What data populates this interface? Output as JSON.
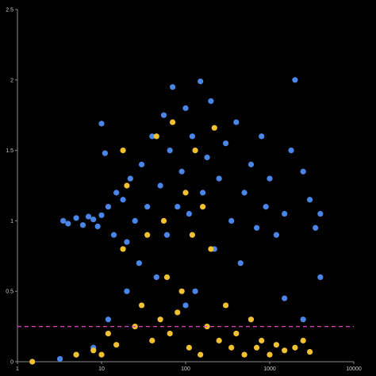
{
  "chart_data": {
    "type": "scatter",
    "title": "",
    "xlabel": "",
    "ylabel": "",
    "x_scale": "log",
    "xlim": [
      1,
      10000
    ],
    "ylim": [
      0,
      2.5
    ],
    "x_ticks": [
      {
        "value": 1,
        "label": "1"
      },
      {
        "value": 10,
        "label": "10"
      },
      {
        "value": 100,
        "label": "100"
      },
      {
        "value": 1000,
        "label": "1000"
      },
      {
        "value": 10000,
        "label": "10000"
      }
    ],
    "y_ticks": [
      {
        "value": 0,
        "label": "0"
      },
      {
        "value": 0.5,
        "label": "0.5"
      },
      {
        "value": 1,
        "label": "1"
      },
      {
        "value": 1.5,
        "label": "1.5"
      },
      {
        "value": 2,
        "label": "2"
      },
      {
        "value": 2.5,
        "label": "2.5"
      }
    ],
    "grid": false,
    "legend": "none",
    "background_color": "#000000",
    "axis_color": "#8a8a8a",
    "reference_line": {
      "y": 0.25,
      "color": "#e040c8",
      "style": "dashed"
    },
    "series": [
      {
        "color": "#4a86e8",
        "points": [
          [
            3.5,
            1.0
          ],
          [
            4,
            0.98
          ],
          [
            5,
            1.02
          ],
          [
            6,
            0.97
          ],
          [
            7,
            1.03
          ],
          [
            8,
            1.01
          ],
          [
            9,
            0.96
          ],
          [
            10,
            1.04
          ],
          [
            10,
            1.69
          ],
          [
            11,
            1.48
          ],
          [
            12,
            1.1
          ],
          [
            14,
            0.9
          ],
          [
            15,
            1.2
          ],
          [
            18,
            1.15
          ],
          [
            20,
            0.85
          ],
          [
            22,
            1.3
          ],
          [
            25,
            1.0
          ],
          [
            28,
            0.7
          ],
          [
            30,
            1.4
          ],
          [
            35,
            1.1
          ],
          [
            40,
            1.6
          ],
          [
            45,
            0.6
          ],
          [
            50,
            1.25
          ],
          [
            55,
            1.75
          ],
          [
            60,
            0.9
          ],
          [
            65,
            1.5
          ],
          [
            70,
            1.95
          ],
          [
            80,
            1.1
          ],
          [
            90,
            1.35
          ],
          [
            100,
            1.8
          ],
          [
            100,
            0.4
          ],
          [
            110,
            1.05
          ],
          [
            120,
            1.6
          ],
          [
            130,
            0.5
          ],
          [
            150,
            1.99
          ],
          [
            160,
            1.2
          ],
          [
            180,
            1.45
          ],
          [
            200,
            1.85
          ],
          [
            220,
            0.8
          ],
          [
            250,
            1.3
          ],
          [
            300,
            1.55
          ],
          [
            350,
            1.0
          ],
          [
            400,
            1.7
          ],
          [
            450,
            0.7
          ],
          [
            500,
            1.2
          ],
          [
            600,
            1.4
          ],
          [
            700,
            0.95
          ],
          [
            800,
            1.6
          ],
          [
            900,
            1.1
          ],
          [
            1000,
            1.3
          ],
          [
            1200,
            0.9
          ],
          [
            1500,
            1.05
          ],
          [
            1800,
            1.5
          ],
          [
            2000,
            2.0
          ],
          [
            2500,
            1.35
          ],
          [
            3000,
            1.15
          ],
          [
            3500,
            0.95
          ],
          [
            4000,
            1.05
          ],
          [
            4000,
            0.6
          ],
          [
            2500,
            0.3
          ],
          [
            1500,
            0.45
          ],
          [
            5,
            0.05
          ],
          [
            8,
            0.1
          ],
          [
            3.2,
            0.02
          ],
          [
            12,
            0.3
          ],
          [
            20,
            0.5
          ]
        ]
      },
      {
        "color": "#f2c132",
        "points": [
          [
            1.5,
            0.0
          ],
          [
            5,
            0.05
          ],
          [
            8,
            0.08
          ],
          [
            10,
            0.05
          ],
          [
            12,
            0.2
          ],
          [
            15,
            0.12
          ],
          [
            18,
            1.5
          ],
          [
            18,
            0.8
          ],
          [
            20,
            1.25
          ],
          [
            25,
            0.25
          ],
          [
            30,
            0.4
          ],
          [
            35,
            0.9
          ],
          [
            40,
            0.15
          ],
          [
            45,
            1.6
          ],
          [
            50,
            0.3
          ],
          [
            55,
            1.0
          ],
          [
            60,
            0.6
          ],
          [
            65,
            0.2
          ],
          [
            70,
            1.7
          ],
          [
            80,
            0.35
          ],
          [
            90,
            0.5
          ],
          [
            100,
            1.2
          ],
          [
            110,
            0.1
          ],
          [
            120,
            0.9
          ],
          [
            130,
            1.5
          ],
          [
            150,
            0.05
          ],
          [
            160,
            1.1
          ],
          [
            180,
            0.25
          ],
          [
            200,
            0.8
          ],
          [
            220,
            1.66
          ],
          [
            250,
            0.15
          ],
          [
            300,
            0.4
          ],
          [
            350,
            0.1
          ],
          [
            400,
            0.2
          ],
          [
            500,
            0.05
          ],
          [
            600,
            0.3
          ],
          [
            700,
            0.1
          ],
          [
            800,
            0.15
          ],
          [
            1000,
            0.05
          ],
          [
            1200,
            0.12
          ],
          [
            1500,
            0.08
          ],
          [
            2000,
            0.1
          ],
          [
            2500,
            0.15
          ],
          [
            3000,
            0.07
          ]
        ]
      }
    ]
  }
}
